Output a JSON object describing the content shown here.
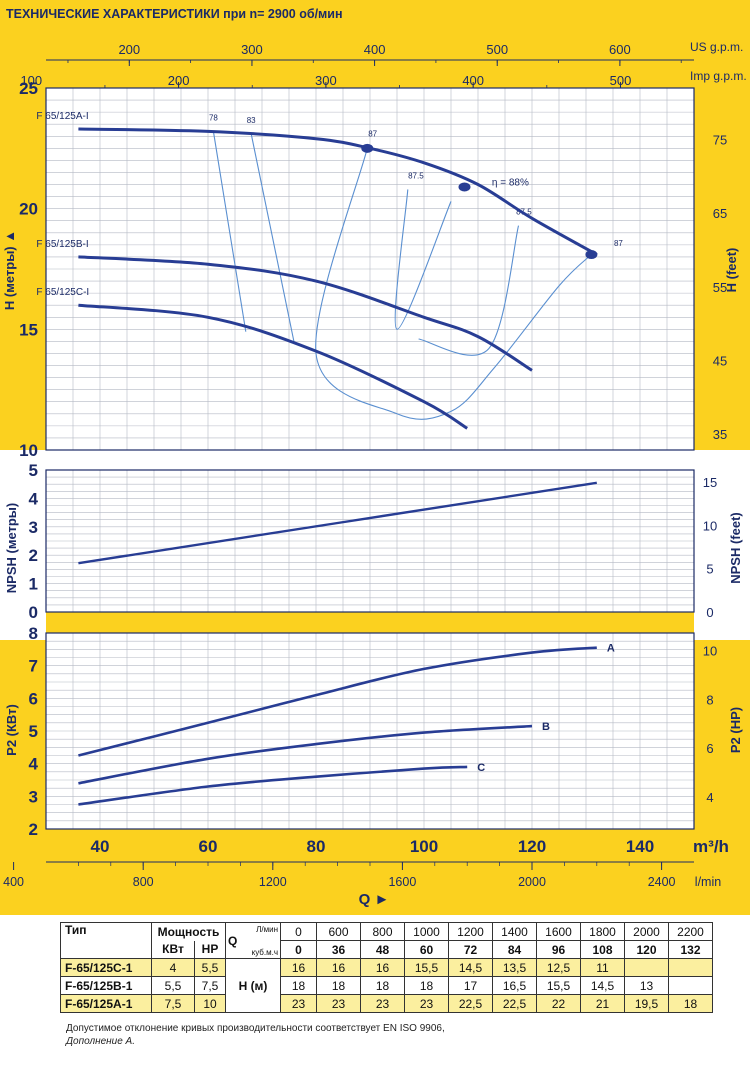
{
  "header": {
    "title": "ТЕХНИЧЕСКИЕ ХАРАКТЕРИСТИКИ при n= 2900 об/мин",
    "us_gpm_label": "US g.p.m.",
    "imp_gpm_label": "Imp g.p.m.",
    "us_gpm_ticks": [
      "200",
      "300",
      "400",
      "500",
      "600"
    ],
    "imp_gpm_ticks": [
      "100",
      "200",
      "300",
      "400",
      "500"
    ]
  },
  "colors": {
    "accent": "#fbd11f",
    "curve": "#283d94",
    "thin": "#5a8fd0"
  },
  "chart_data": [
    {
      "type": "line",
      "title": "",
      "xlabel": "Q",
      "ylabel": "H (метры)",
      "ylabel_right": "H (feet)",
      "xlim": [
        30,
        150
      ],
      "ylim": [
        10,
        25
      ],
      "y_ticks": [
        "10",
        "15",
        "20",
        "25"
      ],
      "y_right_ticks": [
        "35",
        "45",
        "55",
        "65",
        "75"
      ],
      "x_unit": "m3/h",
      "series": [
        {
          "name": "F 65/125A-I",
          "x": [
            36,
            60,
            80,
            90,
            100,
            110,
            120,
            132
          ],
          "y": [
            23.3,
            23.2,
            22.9,
            22.5,
            21.9,
            21.0,
            19.6,
            18.1
          ]
        },
        {
          "name": "F 65/125B-I",
          "x": [
            36,
            60,
            80,
            100,
            110,
            120
          ],
          "y": [
            18.0,
            17.7,
            17.0,
            15.5,
            14.7,
            13.3
          ]
        },
        {
          "name": "F 65/125C-I",
          "x": [
            36,
            60,
            80,
            100,
            108
          ],
          "y": [
            16.0,
            15.5,
            14.1,
            12.0,
            10.9
          ]
        }
      ],
      "efficiency_lines": [
        {
          "label": "78",
          "x": [
            61,
            67
          ],
          "y": [
            23.2,
            14.9
          ]
        },
        {
          "label": "83",
          "x": [
            68,
            76
          ],
          "y": [
            23.1,
            14.4
          ]
        },
        {
          "label": "87",
          "x": [
            89.5,
            80,
            95,
            105,
            113,
            125,
            131
          ],
          "y": [
            22.5,
            14.0,
            11.5,
            11.6,
            13.4,
            16.8,
            18.1
          ]
        },
        {
          "label": "87.5",
          "x": [
            97,
            95,
            105
          ],
          "y": [
            20.8,
            15.0,
            20.3
          ]
        },
        {
          "label": "87.5",
          "x": [
            117.5,
            112,
            99
          ],
          "y": [
            19.3,
            14.2,
            14.6
          ]
        }
      ],
      "points": [
        {
          "x": 89.5,
          "y": 22.5
        },
        {
          "x": 107.5,
          "y": 20.9
        },
        {
          "x": 131,
          "y": 18.1
        }
      ],
      "annotations": [
        "η = 88%"
      ]
    },
    {
      "type": "line",
      "title": "",
      "ylabel": "NPSH (метры)",
      "ylabel_right": "NPSH (feet)",
      "xlim": [
        30,
        150
      ],
      "ylim": [
        0,
        5
      ],
      "y_ticks": [
        "0",
        "1",
        "2",
        "3",
        "4",
        "5"
      ],
      "y_right_ticks": [
        "0",
        "5",
        "10",
        "15"
      ],
      "series": [
        {
          "name": "NPSH",
          "x": [
            36,
            132
          ],
          "y": [
            1.72,
            4.55
          ]
        }
      ]
    },
    {
      "type": "line",
      "title": "",
      "ylabel": "P2 (КВт)",
      "ylabel_right": "P2 (HP)",
      "xlim": [
        30,
        150
      ],
      "ylim": [
        2,
        8
      ],
      "y_ticks": [
        "2",
        "3",
        "4",
        "5",
        "6",
        "7",
        "8"
      ],
      "y_right_ticks": [
        "4",
        "6",
        "8",
        "10"
      ],
      "x_ticks": [
        "40",
        "60",
        "80",
        "100",
        "120",
        "140"
      ],
      "x_unit": "m³/h",
      "l_min_ticks": [
        "400",
        "800",
        "1200",
        "1600",
        "2000",
        "2400"
      ],
      "l_min_unit": "l/min",
      "q_label": "Q ►",
      "series": [
        {
          "name": "A",
          "x": [
            36,
            60,
            80,
            100,
            120,
            132
          ],
          "y": [
            4.25,
            5.25,
            6.1,
            6.9,
            7.4,
            7.55
          ]
        },
        {
          "name": "B",
          "x": [
            36,
            60,
            80,
            100,
            120
          ],
          "y": [
            3.4,
            4.15,
            4.6,
            4.95,
            5.15
          ]
        },
        {
          "name": "C",
          "x": [
            36,
            60,
            80,
            100,
            108
          ],
          "y": [
            2.75,
            3.3,
            3.6,
            3.85,
            3.9
          ]
        }
      ]
    }
  ],
  "table": {
    "header_type": "Тип",
    "header_power": "Мощность",
    "header_kw": "КВт",
    "header_hp": "HP",
    "q_label": "Q",
    "q_unit_lmin": "Л/мин",
    "q_unit_m3h": "куб.м.ч",
    "h_label": "H (м)",
    "q_lmin": [
      "0",
      "600",
      "800",
      "1000",
      "1200",
      "1400",
      "1600",
      "1800",
      "2000",
      "2200"
    ],
    "q_m3h": [
      "0",
      "36",
      "48",
      "60",
      "72",
      "84",
      "96",
      "108",
      "120",
      "132"
    ],
    "rows": [
      {
        "type": "F-65/125C-1",
        "kw": "4",
        "hp": "5,5",
        "h": [
          "16",
          "16",
          "16",
          "15,5",
          "14,5",
          "13,5",
          "12,5",
          "11",
          "",
          ""
        ]
      },
      {
        "type": "F-65/125B-1",
        "kw": "5,5",
        "hp": "7,5",
        "h": [
          "18",
          "18",
          "18",
          "18",
          "17",
          "16,5",
          "15,5",
          "14,5",
          "13",
          ""
        ]
      },
      {
        "type": "F-65/125A-1",
        "kw": "7,5",
        "hp": "10",
        "h": [
          "23",
          "23",
          "23",
          "23",
          "22,5",
          "22,5",
          "22",
          "21",
          "19,5",
          "18"
        ]
      }
    ]
  },
  "footnote": {
    "line1": "Допустимое отклонение кривых производительности соответствует EN ISO 9906,",
    "line2": "Дополнение А."
  }
}
